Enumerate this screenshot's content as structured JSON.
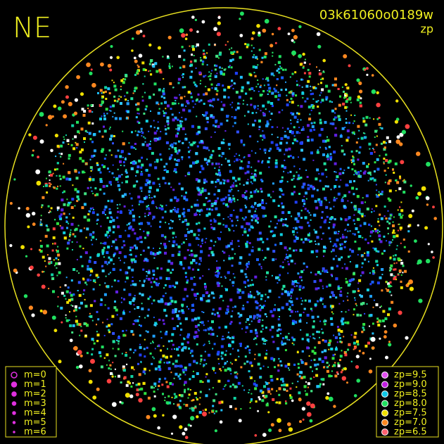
{
  "title": "NE",
  "frame_id": "03k61060o0189w",
  "color_key": "zp",
  "magnitude_legend": [
    {
      "label": "m=0"
    },
    {
      "label": "m=1"
    },
    {
      "label": "m=2"
    },
    {
      "label": "m=3"
    },
    {
      "label": "m=4"
    },
    {
      "label": "m=5"
    },
    {
      "label": "m=6"
    }
  ],
  "zp_legend": [
    {
      "label": "zp=9.5",
      "color": "#e050f0"
    },
    {
      "label": "zp=9.0",
      "color": "#c020e0"
    },
    {
      "label": "zp=8.5",
      "color": "#10c8e8"
    },
    {
      "label": "zp=8.0",
      "color": "#20e060"
    },
    {
      "label": "zp=7.5",
      "color": "#f0e000"
    },
    {
      "label": "zp=7.0",
      "color": "#ff8820"
    },
    {
      "label": "zp=6.5",
      "color": "#ff6070"
    }
  ]
}
